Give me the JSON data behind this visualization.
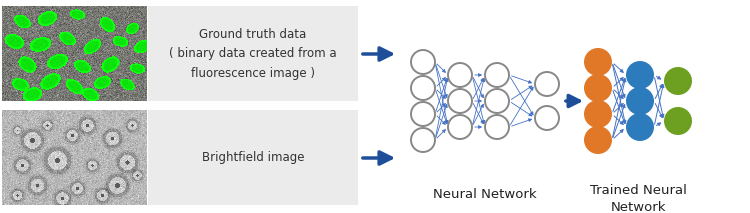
{
  "bg_color": "#ffffff",
  "panel_bg": "#ebebeb",
  "arrow_color": "#1e4d99",
  "nn_edge_color": "#4472c4",
  "nn_node_color": "#ffffff",
  "nn_node_edge": "#888888",
  "trained_input_color": "#e07828",
  "trained_hidden_color": "#2b7bbd",
  "trained_output_color": "#6da020",
  "small_arrow_color": "#1e4d99",
  "label_neural": "Neural Network",
  "label_trained": "Trained Neural\nNetwork",
  "label_gt": "Ground truth data\n( binary data created from a\nfluorescence image )",
  "label_bf": "Brightfield image",
  "font_size_labels": 8.5,
  "font_size_nn": 9.5,
  "fig_width": 7.5,
  "fig_height": 2.13,
  "dpi": 100
}
